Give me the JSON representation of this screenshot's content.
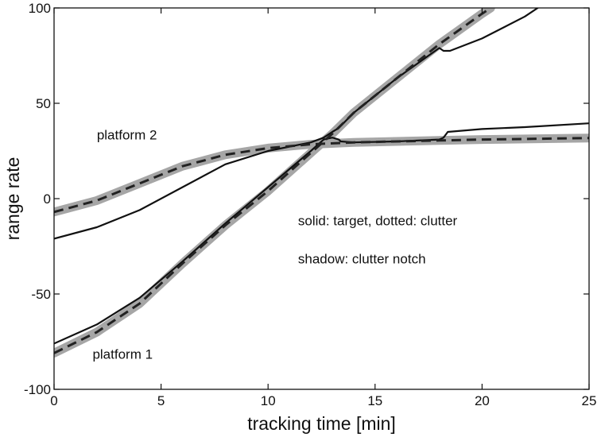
{
  "chart_data": {
    "type": "line",
    "xlabel": "tracking time [min]",
    "ylabel": "range rate",
    "xlim": [
      0,
      25
    ],
    "ylim": [
      -100,
      100
    ],
    "x_ticks": [
      0,
      5,
      10,
      15,
      20,
      25
    ],
    "y_ticks": [
      -100,
      -50,
      0,
      50,
      100
    ],
    "grid": false,
    "annotations": [
      {
        "text": "platform 2",
        "x": 2.0,
        "y": 31
      },
      {
        "text": "platform 1",
        "x": 1.8,
        "y": -84
      },
      {
        "text": "solid:  target,   dotted:  clutter",
        "x": 11.4,
        "y": -14
      },
      {
        "text": "shadow:  clutter notch",
        "x": 11.4,
        "y": -34
      }
    ],
    "series": [
      {
        "style": "shadow",
        "color": "#a6a6a6",
        "points": [
          [
            0,
            -81
          ],
          [
            2,
            -70
          ],
          [
            4,
            -55
          ],
          [
            6,
            -34
          ],
          [
            8,
            -14
          ],
          [
            10,
            4
          ],
          [
            12,
            24
          ],
          [
            13,
            34
          ],
          [
            14,
            45
          ],
          [
            16,
            63
          ],
          [
            18,
            81
          ],
          [
            20,
            97
          ],
          [
            20.4,
            100
          ]
        ]
      },
      {
        "style": "shadow",
        "color": "#a6a6a6",
        "points": [
          [
            0,
            -7
          ],
          [
            2,
            -1
          ],
          [
            4,
            8
          ],
          [
            6,
            17
          ],
          [
            8,
            23
          ],
          [
            10,
            26.5
          ],
          [
            12,
            28.5
          ],
          [
            14,
            29.5
          ],
          [
            16,
            30
          ],
          [
            18,
            30.5
          ],
          [
            20,
            31
          ],
          [
            22,
            31.3
          ],
          [
            25,
            31.8
          ]
        ]
      },
      {
        "style": "solid",
        "color": "#111111",
        "points": [
          [
            0,
            -76
          ],
          [
            2,
            -66
          ],
          [
            4,
            -52
          ],
          [
            6,
            -33
          ],
          [
            8,
            -13
          ],
          [
            10,
            6
          ],
          [
            12,
            25
          ],
          [
            12.6,
            31
          ],
          [
            13,
            32
          ],
          [
            13.3,
            31
          ],
          [
            13.4,
            30
          ],
          [
            14,
            29.5
          ],
          [
            16,
            30
          ],
          [
            18,
            31
          ],
          [
            18.2,
            32
          ],
          [
            18.4,
            35
          ],
          [
            20,
            36.5
          ],
          [
            22,
            37.5
          ],
          [
            25,
            39.5
          ]
        ]
      },
      {
        "style": "solid",
        "color": "#111111",
        "points": [
          [
            0,
            -21
          ],
          [
            2,
            -15
          ],
          [
            4,
            -6
          ],
          [
            6,
            6
          ],
          [
            8,
            18
          ],
          [
            10,
            25
          ],
          [
            12,
            29.5
          ],
          [
            12.6,
            32
          ],
          [
            13,
            35
          ],
          [
            13.3,
            37
          ],
          [
            14,
            45
          ],
          [
            16,
            63
          ],
          [
            18,
            79
          ],
          [
            18.2,
            77.5
          ],
          [
            18.5,
            77.5
          ],
          [
            20,
            84
          ],
          [
            22,
            95.5
          ],
          [
            22.6,
            100
          ]
        ]
      },
      {
        "style": "dashed",
        "color": "#222222",
        "points": [
          [
            0,
            -81
          ],
          [
            2,
            -70
          ],
          [
            4,
            -55
          ],
          [
            6,
            -34
          ],
          [
            8,
            -14
          ],
          [
            10,
            4
          ],
          [
            12,
            24
          ],
          [
            13,
            34
          ],
          [
            14,
            45
          ],
          [
            16,
            63
          ],
          [
            18,
            81
          ],
          [
            20,
            97
          ],
          [
            20.4,
            100
          ]
        ]
      },
      {
        "style": "dashed",
        "color": "#222222",
        "points": [
          [
            0,
            -7
          ],
          [
            2,
            -1
          ],
          [
            4,
            8
          ],
          [
            6,
            17
          ],
          [
            8,
            23
          ],
          [
            10,
            26.5
          ],
          [
            12,
            28.5
          ],
          [
            14,
            29.5
          ],
          [
            16,
            30
          ],
          [
            18,
            30.5
          ],
          [
            20,
            31
          ],
          [
            22,
            31.3
          ],
          [
            25,
            31.8
          ]
        ]
      }
    ]
  }
}
